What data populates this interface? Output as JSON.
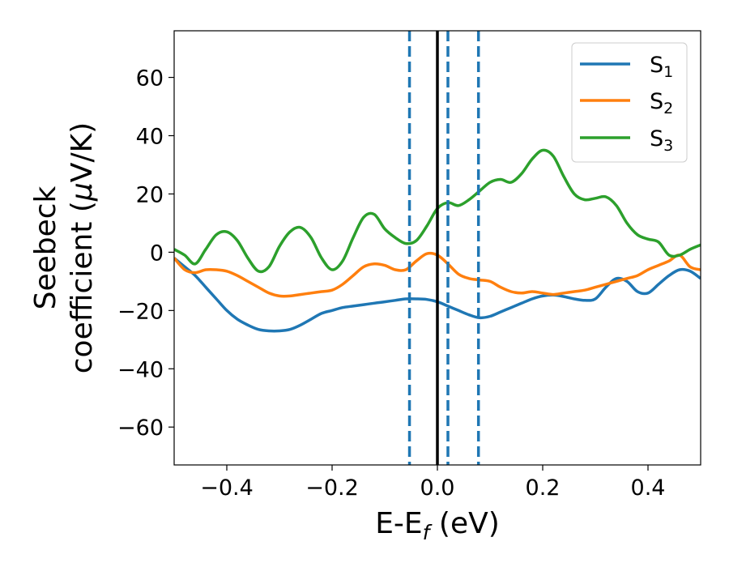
{
  "chart_data": {
    "type": "line",
    "xlabel": "E-E_f (eV)",
    "xlabel_main": "E-E",
    "xlabel_sub": "f",
    "xlabel_tail": " (eV)",
    "ylabel_line1": "Seebeck",
    "ylabel_line2_text": "coefficient  (",
    "ylabel_mu": "μ",
    "ylabel_line2_tail": "V/K)",
    "xlim": [
      -0.5,
      0.5
    ],
    "ylim": [
      -73,
      76
    ],
    "xticks": [
      -0.4,
      -0.2,
      0.0,
      0.2,
      0.4
    ],
    "xtick_labels": [
      "−0.4",
      "−0.2",
      "0.0",
      "0.2",
      "0.4"
    ],
    "yticks": [
      -60,
      -40,
      -20,
      0,
      20,
      40,
      60
    ],
    "ytick_labels": [
      "−60",
      "−40",
      "−20",
      "0",
      "20",
      "40",
      "60"
    ],
    "legend_position": "top-right",
    "vlines": [
      {
        "x": 0.0,
        "style": "solid",
        "color": "#000000"
      },
      {
        "x": -0.053,
        "style": "dashed",
        "color": "#1f77b4"
      },
      {
        "x": 0.02,
        "style": "dashed",
        "color": "#1f77b4"
      },
      {
        "x": 0.078,
        "style": "dashed",
        "color": "#1f77b4"
      }
    ],
    "series": [
      {
        "name": "S_1",
        "label_main": "S",
        "label_sub": "1",
        "color": "#1f77b4",
        "x": [
          -0.5,
          -0.48,
          -0.46,
          -0.44,
          -0.42,
          -0.4,
          -0.38,
          -0.36,
          -0.34,
          -0.32,
          -0.3,
          -0.28,
          -0.26,
          -0.24,
          -0.22,
          -0.2,
          -0.18,
          -0.16,
          -0.14,
          -0.12,
          -0.1,
          -0.08,
          -0.06,
          -0.04,
          -0.02,
          0.0,
          0.02,
          0.04,
          0.06,
          0.08,
          0.1,
          0.12,
          0.14,
          0.16,
          0.18,
          0.2,
          0.22,
          0.24,
          0.26,
          0.28,
          0.3,
          0.32,
          0.34,
          0.36,
          0.38,
          0.4,
          0.42,
          0.44,
          0.46,
          0.48,
          0.5
        ],
        "y": [
          -2,
          -5,
          -8,
          -12,
          -16,
          -20,
          -23,
          -25,
          -26.5,
          -27,
          -27,
          -26.5,
          -25,
          -23,
          -21,
          -20,
          -19,
          -18.5,
          -18,
          -17.5,
          -17,
          -16.5,
          -16,
          -16,
          -16.2,
          -17,
          -18.5,
          -20,
          -21.5,
          -22.5,
          -22,
          -20.5,
          -19,
          -17.5,
          -16,
          -15,
          -14.7,
          -15.2,
          -16,
          -16.5,
          -16,
          -12,
          -9,
          -10,
          -13.5,
          -14,
          -11,
          -8,
          -6,
          -6.5,
          -9
        ]
      },
      {
        "name": "S_2",
        "label_main": "S",
        "label_sub": "2",
        "color": "#ff7f0e",
        "x": [
          -0.5,
          -0.48,
          -0.46,
          -0.44,
          -0.42,
          -0.4,
          -0.38,
          -0.36,
          -0.34,
          -0.32,
          -0.3,
          -0.28,
          -0.26,
          -0.24,
          -0.22,
          -0.2,
          -0.18,
          -0.16,
          -0.14,
          -0.12,
          -0.1,
          -0.08,
          -0.06,
          -0.04,
          -0.02,
          0.0,
          0.02,
          0.04,
          0.06,
          0.08,
          0.1,
          0.12,
          0.14,
          0.16,
          0.18,
          0.2,
          0.22,
          0.24,
          0.26,
          0.28,
          0.3,
          0.32,
          0.34,
          0.36,
          0.38,
          0.4,
          0.42,
          0.44,
          0.46,
          0.48,
          0.5
        ],
        "y": [
          -2,
          -6,
          -7,
          -6,
          -6,
          -6.5,
          -8,
          -10,
          -12,
          -14,
          -15,
          -15,
          -14.5,
          -14,
          -13.5,
          -13,
          -11,
          -8,
          -5,
          -4,
          -4.5,
          -6,
          -6,
          -3,
          -0.5,
          -1,
          -4,
          -7.5,
          -9,
          -9.5,
          -10,
          -12,
          -13.5,
          -14,
          -13.5,
          -14,
          -14.5,
          -14,
          -13.5,
          -13,
          -12,
          -11,
          -10,
          -9,
          -8,
          -6,
          -4.5,
          -3,
          -1,
          -5,
          -6
        ]
      },
      {
        "name": "S_3",
        "label_main": "S",
        "label_sub": "3",
        "color": "#2ca02c",
        "x": [
          -0.5,
          -0.48,
          -0.46,
          -0.44,
          -0.42,
          -0.4,
          -0.38,
          -0.36,
          -0.34,
          -0.32,
          -0.3,
          -0.28,
          -0.26,
          -0.24,
          -0.22,
          -0.2,
          -0.18,
          -0.16,
          -0.14,
          -0.12,
          -0.1,
          -0.08,
          -0.06,
          -0.04,
          -0.02,
          0.0,
          0.02,
          0.04,
          0.06,
          0.08,
          0.1,
          0.12,
          0.14,
          0.16,
          0.18,
          0.2,
          0.22,
          0.24,
          0.26,
          0.28,
          0.3,
          0.32,
          0.34,
          0.36,
          0.38,
          0.4,
          0.42,
          0.44,
          0.46,
          0.48,
          0.5
        ],
        "y": [
          1,
          -1,
          -4,
          1,
          6,
          7,
          4,
          -2,
          -6.5,
          -5,
          2,
          7,
          8.5,
          5,
          -2,
          -6,
          -3,
          5,
          12,
          13,
          8,
          5,
          3,
          4,
          9,
          15,
          17,
          16,
          18,
          21,
          24,
          25,
          24,
          27,
          32,
          35,
          33,
          26,
          20,
          18,
          18.5,
          19,
          16,
          10,
          6,
          4.5,
          3.5,
          -1,
          -1,
          1,
          2.5
        ]
      }
    ]
  }
}
